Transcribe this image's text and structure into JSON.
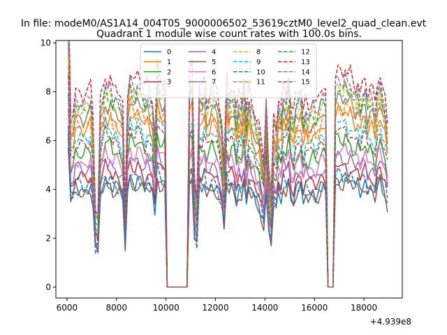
{
  "suptitle": "In file: modeM0/AS1A14_004T05_9000006502_53619cztM0_level2_quad_clean.evt",
  "chart_data": {
    "type": "line",
    "title": "Quadrant 1 module wise count rates with 100.0s bins.",
    "xlabel": "",
    "ylabel": "",
    "x_offset_label": "+4.939e8",
    "xlim": [
      5550,
      19550
    ],
    "ylim": [
      -0.45,
      10.1
    ],
    "xticks": [
      6000,
      8000,
      10000,
      12000,
      14000,
      16000,
      18000
    ],
    "xtick_labels": [
      "6000",
      "8000",
      "10000",
      "12000",
      "14000",
      "16000",
      "18000"
    ],
    "yticks": [
      0,
      2,
      4,
      6,
      8,
      10
    ],
    "ytick_labels": [
      "0",
      "2",
      "4",
      "6",
      "8",
      "10"
    ],
    "legend_location": "upper center",
    "legend_columns": 4,
    "x_start": 6050,
    "x_step": 100,
    "profile_levels": [
      6.0,
      3.6,
      3.7,
      4.1,
      4.0,
      4.0,
      3.9,
      4.0,
      4.0,
      4.1,
      3.5,
      1.6,
      1.5,
      3.9,
      4.1,
      4.4,
      4.2,
      4.3,
      4.0,
      4.1,
      4.0,
      3.9,
      3.7,
      1.6,
      4.0,
      4.5,
      4.3,
      4.2,
      4.4,
      4.3,
      4.2,
      4.0,
      4.2,
      4.0,
      3.9,
      3.2,
      4.6,
      4.3,
      4.2,
      4.3,
      0.0,
      0.0,
      0.0,
      0.0,
      0.0,
      0.0,
      0.0,
      0.0,
      0.0,
      4.4,
      4.5,
      2.2,
      1.8,
      4.2,
      4.1,
      4.3,
      3.9,
      4.0,
      4.2,
      4.1,
      4.0,
      3.7,
      3.4,
      2.5,
      4.3,
      4.0,
      4.2,
      4.1,
      3.6,
      4.0,
      3.8,
      4.3,
      3.5,
      4.1,
      3.8,
      3.7,
      3.5,
      3.4,
      3.0,
      2.6,
      3.9,
      2.4,
      1.8,
      3.5,
      3.3,
      3.9,
      3.7,
      4.2,
      4.0,
      4.4,
      3.7,
      3.5,
      3.9,
      4.0,
      4.1,
      3.6,
      3.9,
      3.7,
      3.8,
      3.9,
      3.7,
      3.8,
      4.0,
      4.1,
      4.0,
      0.0,
      0.0,
      0.0,
      4.4,
      4.5,
      4.4,
      4.3,
      4.5,
      4.3,
      4.4,
      4.2,
      4.1,
      4.3,
      4.0,
      4.2,
      4.3,
      3.9,
      4.1,
      4.0,
      3.7,
      4.2,
      4.4,
      4.1,
      3.9,
      3.4
    ],
    "series": [
      {
        "name": "0",
        "color": "#1f77b4",
        "dash": "solid",
        "scale": 1.0
      },
      {
        "name": "1",
        "color": "#ff7f0e",
        "dash": "solid",
        "scale": 1.62
      },
      {
        "name": "2",
        "color": "#2ca02c",
        "dash": "solid",
        "scale": 1.36
      },
      {
        "name": "3",
        "color": "#d62728",
        "dash": "solid",
        "scale": 1.12
      },
      {
        "name": "4",
        "color": "#9467bd",
        "dash": "solid",
        "scale": 1.2
      },
      {
        "name": "5",
        "color": "#8c564b",
        "dash": "solid",
        "scale": 0.98
      },
      {
        "name": "6",
        "color": "#e377c2",
        "dash": "solid",
        "scale": 1.28
      },
      {
        "name": "7",
        "color": "#7f7f7f",
        "dash": "solid",
        "scale": 1.74
      },
      {
        "name": "8",
        "color": "#bcbd22",
        "dash": "dashed",
        "scale": 1.82
      },
      {
        "name": "9",
        "color": "#17becf",
        "dash": "dashed",
        "scale": 1.52
      },
      {
        "name": "10",
        "color": "#1f77b4",
        "dash": "dashed",
        "scale": 1.04
      },
      {
        "name": "11",
        "color": "#ff7f0e",
        "dash": "dashed",
        "scale": 1.68
      },
      {
        "name": "12",
        "color": "#2ca02c",
        "dash": "dashed",
        "scale": 1.85
      },
      {
        "name": "13",
        "color": "#d62728",
        "dash": "dashed",
        "scale": 2.0
      },
      {
        "name": "14",
        "color": "#9467bd",
        "dash": "dashed",
        "scale": 1.9
      },
      {
        "name": "15",
        "color": "#8c564b",
        "dash": "dashed",
        "scale": 1.45
      }
    ]
  }
}
